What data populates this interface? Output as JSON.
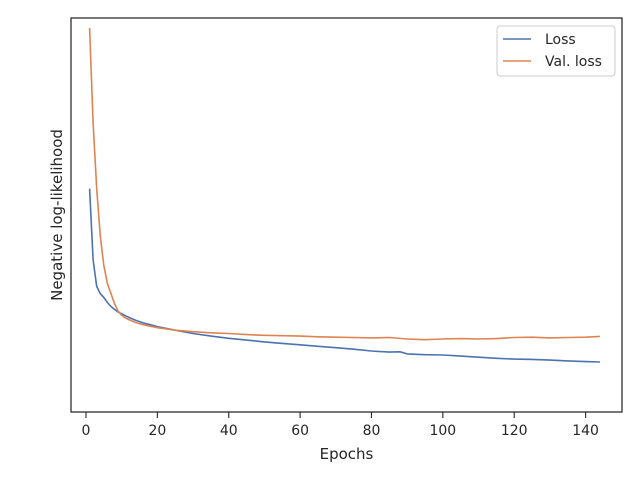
{
  "chart_data": {
    "type": "line",
    "title": "",
    "xlabel": "Epochs",
    "ylabel": "Negative log-likelihood",
    "xlim": [
      -4.2,
      150.2
    ],
    "ylim": [
      0,
      1
    ],
    "xticks": [
      0,
      20,
      40,
      60,
      80,
      100,
      120,
      140
    ],
    "y_tick_labels_shown": false,
    "grid": false,
    "legend_position": "top-right",
    "series": [
      {
        "name": "Loss",
        "color": "#4c72b0",
        "x": [
          1,
          2,
          3,
          4,
          5,
          6,
          7,
          8,
          9,
          10,
          12,
          14,
          16,
          18,
          20,
          25,
          30,
          35,
          40,
          45,
          50,
          55,
          60,
          65,
          70,
          75,
          80,
          85,
          88,
          90,
          95,
          100,
          105,
          110,
          115,
          120,
          125,
          130,
          135,
          140,
          144
        ],
        "y": [
          0.56,
          0.365,
          0.292,
          0.272,
          0.262,
          0.248,
          0.237,
          0.229,
          0.222,
          0.217,
          0.207,
          0.199,
          0.192,
          0.187,
          0.182,
          0.172,
          0.163,
          0.156,
          0.15,
          0.145,
          0.14,
          0.136,
          0.132,
          0.128,
          0.124,
          0.12,
          0.115,
          0.112,
          0.113,
          0.107,
          0.105,
          0.104,
          0.101,
          0.098,
          0.095,
          0.093,
          0.092,
          0.09,
          0.088,
          0.086,
          0.085
        ]
      },
      {
        "name": "Val. loss",
        "color": "#dd8452",
        "x": [
          1,
          2,
          3,
          4,
          5,
          6,
          7,
          8,
          9,
          10,
          11,
          12,
          14,
          16,
          18,
          20,
          25,
          30,
          35,
          40,
          45,
          50,
          55,
          60,
          65,
          70,
          75,
          80,
          85,
          90,
          95,
          100,
          105,
          110,
          115,
          120,
          125,
          130,
          135,
          140,
          144
        ],
        "y": [
          1.0,
          0.74,
          0.56,
          0.43,
          0.35,
          0.3,
          0.272,
          0.245,
          0.224,
          0.213,
          0.206,
          0.201,
          0.193,
          0.187,
          0.183,
          0.179,
          0.172,
          0.168,
          0.165,
          0.163,
          0.16,
          0.158,
          0.157,
          0.156,
          0.154,
          0.153,
          0.152,
          0.151,
          0.152,
          0.148,
          0.146,
          0.148,
          0.149,
          0.148,
          0.149,
          0.152,
          0.153,
          0.151,
          0.152,
          0.153,
          0.155
        ]
      }
    ]
  }
}
